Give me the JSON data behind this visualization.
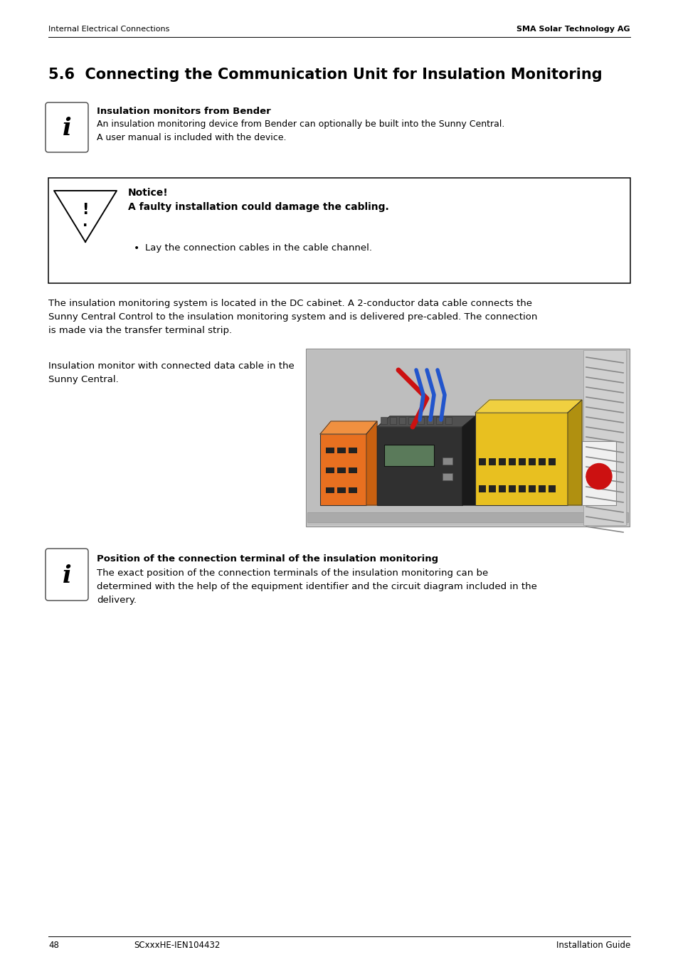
{
  "page_background": "#ffffff",
  "header_left": "Internal Electrical Connections",
  "header_right": "SMA Solar Technology AG",
  "section_title": "5.6  Connecting the Communication Unit for Insulation Monitoring",
  "info_box1_title": "Insulation monitors from Bender",
  "info_box1_text": "An insulation monitoring device from Bender can optionally be built into the Sunny Central.\nA user manual is included with the device.",
  "notice_title": "Notice!",
  "notice_bold": "A faulty installation could damage the cabling.",
  "notice_bullet": "Lay the connection cables in the cable channel.",
  "body_text": "The insulation monitoring system is located in the DC cabinet. A 2-conductor data cable connects the\nSunny Central Control to the insulation monitoring system and is delivered pre-cabled. The connection\nis made via the transfer terminal strip.",
  "caption_text": "Insulation monitor with connected data cable in the\nSunny Central.",
  "info_box2_title": "Position of the connection terminal of the insulation monitoring",
  "info_box2_text": "The exact position of the connection terminals of the insulation monitoring can be\ndetermined with the help of the equipment identifier and the circuit diagram included in the\ndelivery.",
  "footer_page": "48",
  "footer_center": "SCxxxHE-IEN104432",
  "footer_right": "Installation Guide",
  "text_color": "#000000",
  "border_color": "#000000"
}
